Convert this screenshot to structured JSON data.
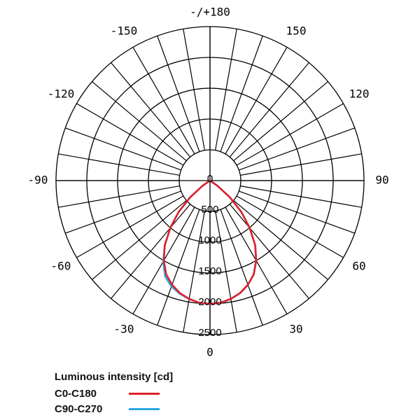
{
  "chart_data": {
    "type": "polar",
    "angle_labels": [
      {
        "deg": 180,
        "text": "-/+180"
      },
      {
        "deg": 150,
        "text": "150"
      },
      {
        "deg": -150,
        "text": "-150"
      },
      {
        "deg": 120,
        "text": "120"
      },
      {
        "deg": -120,
        "text": "-120"
      },
      {
        "deg": 90,
        "text": "90"
      },
      {
        "deg": -90,
        "text": "-90"
      },
      {
        "deg": 60,
        "text": "60"
      },
      {
        "deg": -60,
        "text": "-60"
      },
      {
        "deg": 30,
        "text": "30"
      },
      {
        "deg": -30,
        "text": "-30"
      },
      {
        "deg": 0,
        "text": "0"
      }
    ],
    "radial_ticks": [
      "0",
      "500",
      "1000",
      "1500",
      "2000",
      "2500"
    ],
    "r_max": 2500,
    "series": [
      {
        "name": "C0-C180",
        "color": "#e0202a",
        "points": [
          [
            0,
            2000
          ],
          [
            5,
            1990
          ],
          [
            10,
            1950
          ],
          [
            15,
            1890
          ],
          [
            20,
            1800
          ],
          [
            25,
            1680
          ],
          [
            30,
            1500
          ],
          [
            35,
            1280
          ],
          [
            40,
            1000
          ],
          [
            45,
            720
          ],
          [
            50,
            420
          ],
          [
            55,
            150
          ],
          [
            58,
            20
          ],
          [
            -58,
            20
          ],
          [
            -55,
            150
          ],
          [
            -50,
            420
          ],
          [
            -45,
            720
          ],
          [
            -40,
            1000
          ],
          [
            -35,
            1280
          ],
          [
            -30,
            1500
          ],
          [
            -25,
            1680
          ],
          [
            -20,
            1800
          ],
          [
            -15,
            1890
          ],
          [
            -10,
            1950
          ],
          [
            -5,
            1990
          ],
          [
            0,
            2000
          ]
        ]
      },
      {
        "name": "C90-C270",
        "color": "#2aa8e0",
        "points": [
          [
            0,
            2000
          ],
          [
            5,
            1990
          ],
          [
            10,
            1950
          ],
          [
            15,
            1890
          ],
          [
            20,
            1800
          ],
          [
            25,
            1680
          ],
          [
            30,
            1500
          ],
          [
            35,
            1280
          ],
          [
            40,
            1000
          ],
          [
            45,
            720
          ],
          [
            50,
            420
          ],
          [
            55,
            150
          ],
          [
            58,
            20
          ],
          [
            -58,
            20
          ],
          [
            -55,
            150
          ],
          [
            -50,
            420
          ],
          [
            -45,
            720
          ],
          [
            -40,
            1000
          ],
          [
            -35,
            1280
          ],
          [
            -30,
            1520
          ],
          [
            -25,
            1720
          ],
          [
            -20,
            1830
          ],
          [
            -15,
            1900
          ],
          [
            -10,
            1950
          ],
          [
            -5,
            1990
          ],
          [
            0,
            2000
          ]
        ]
      }
    ]
  },
  "legend": {
    "title": "Luminous intensity [cd]",
    "items": [
      {
        "label": "C0-C180",
        "color": "#e0202a"
      },
      {
        "label": "C90-C270",
        "color": "#2aa8e0"
      }
    ]
  }
}
